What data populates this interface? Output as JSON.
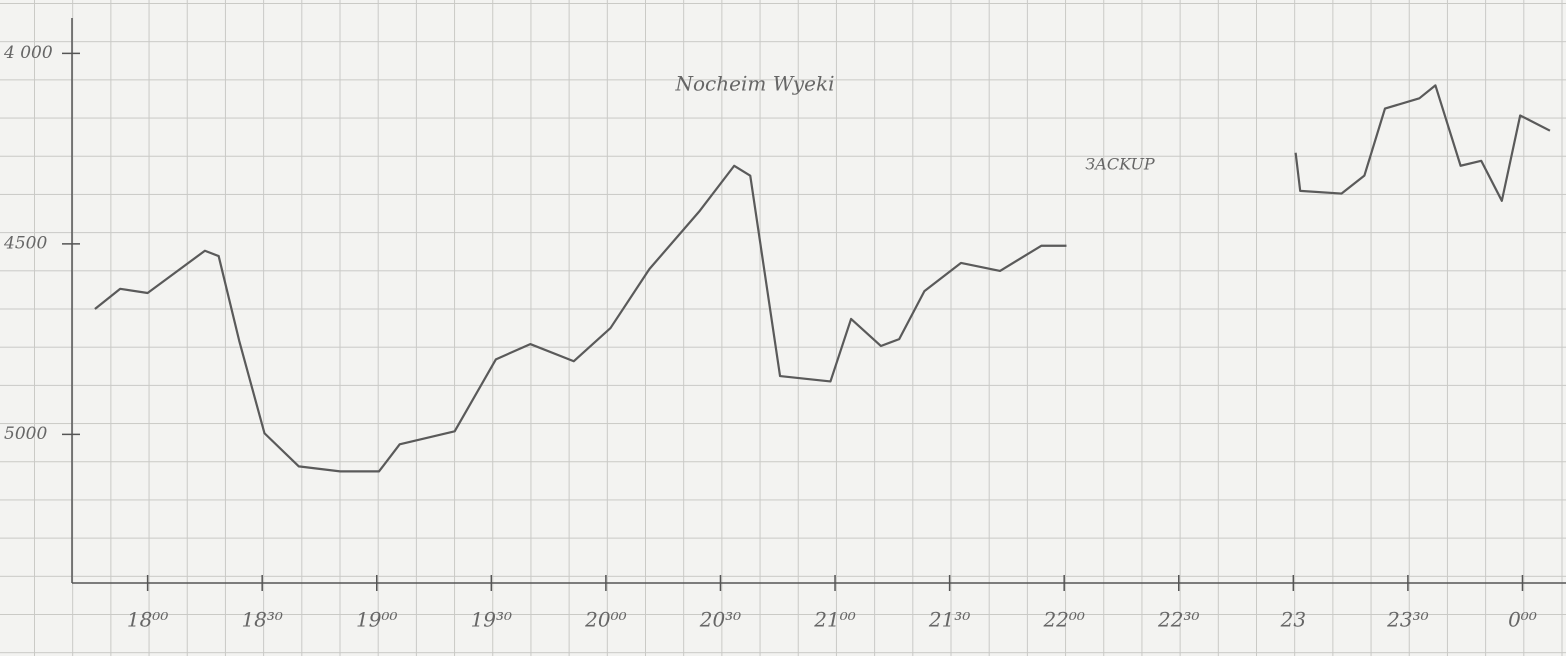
{
  "chart_data": {
    "type": "line",
    "title": "Nocheim Wyeki",
    "annotations": [
      "ЗACKUP"
    ],
    "x": [
      17.77,
      17.88,
      18.0,
      18.25,
      18.31,
      18.4,
      18.51,
      18.66,
      18.84,
      19.01,
      19.1,
      19.34,
      19.52,
      19.67,
      19.86,
      20.02,
      20.19,
      20.41,
      20.56,
      20.63,
      20.76,
      20.98,
      21.07,
      21.2,
      21.28,
      21.39,
      21.55,
      21.72,
      21.9,
      22.01,
      22.5,
      23.01,
      23.03,
      23.21,
      23.31,
      23.4,
      23.55,
      23.62,
      23.73,
      23.82,
      23.91,
      23.99,
      24.12
    ],
    "series": [
      {
        "color": "#5a5a5a",
        "values": [
          4671,
          4618,
          4629,
          4518,
          4532,
          4755,
          4997,
          5084,
          5097,
          5097,
          5026,
          4992,
          4803,
          4763,
          4808,
          4721,
          4566,
          4413,
          4295,
          4321,
          4847,
          4861,
          4697,
          4768,
          4750,
          4624,
          4550,
          4571,
          4505,
          4505,
          null,
          4261,
          4361,
          4368,
          4321,
          4145,
          4118,
          4084,
          4295,
          4282,
          4387,
          4163,
          4203
        ]
      }
    ],
    "xlim": [
      17.67,
      24.19
    ],
    "xticks": [
      {
        "value": 18,
        "label": "18⁰⁰"
      },
      {
        "value": 18.5,
        "label": "18³⁰"
      },
      {
        "value": 19,
        "label": "19⁰⁰"
      },
      {
        "value": 19.5,
        "label": "19³⁰"
      },
      {
        "value": 20,
        "label": "20⁰⁰"
      },
      {
        "value": 20.5,
        "label": "20³⁰"
      },
      {
        "value": 21,
        "label": "21⁰⁰"
      },
      {
        "value": 21.5,
        "label": "21³⁰"
      },
      {
        "value": 22,
        "label": "22⁰⁰"
      },
      {
        "value": 22.5,
        "label": "22³⁰"
      },
      {
        "value": 23,
        "label": "23"
      },
      {
        "value": 23.5,
        "label": "23³⁰"
      },
      {
        "value": 24,
        "label": "0⁰⁰"
      }
    ],
    "ylim": [
      5390,
      3860
    ],
    "yticks": [
      {
        "value": 4000,
        "label": "4 000"
      },
      4500,
      5000
    ]
  }
}
